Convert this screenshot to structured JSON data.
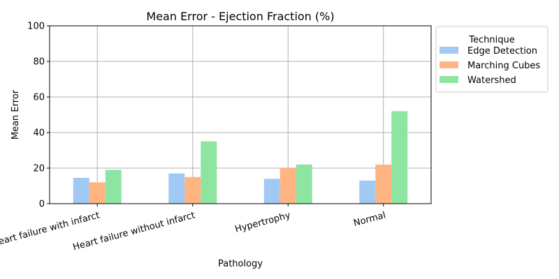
{
  "chart_data": {
    "type": "bar",
    "title": "Mean Error - Ejection Fraction (%)",
    "xlabel": "Pathology",
    "ylabel": "Mean Error",
    "ylim": [
      0,
      100
    ],
    "yticks": [
      0,
      20,
      40,
      60,
      80,
      100
    ],
    "grid": true,
    "legend_title": "Technique",
    "legend_position": "outside-top-right",
    "categories": [
      "Heart failure with infarct",
      "Heart failure without infarct",
      "Hypertrophy",
      "Normal"
    ],
    "series": [
      {
        "name": "Edge Detection",
        "color": "#a1c9f4",
        "values": [
          14.5,
          17,
          14,
          13
        ]
      },
      {
        "name": "Marching Cubes",
        "color": "#ffb482",
        "values": [
          12,
          15,
          20,
          22
        ]
      },
      {
        "name": "Watershed",
        "color": "#8de5a1",
        "values": [
          19,
          35,
          22,
          52
        ]
      }
    ]
  }
}
